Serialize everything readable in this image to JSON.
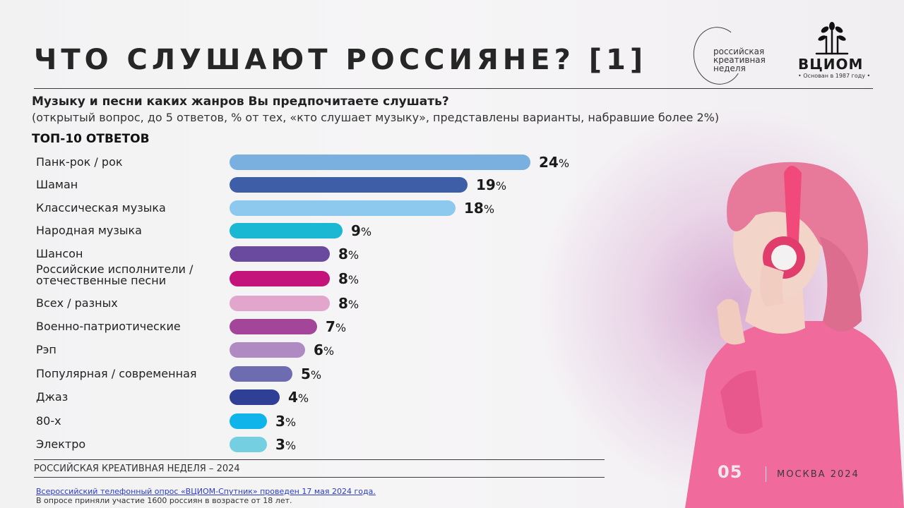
{
  "header": {
    "title": "ЧТО СЛУШАЮТ РОССИЯНЕ? [1]",
    "brand_lines": [
      "российская",
      "креативная",
      "неделя"
    ],
    "vciom_name": "ВЦИОМ",
    "vciom_tagline": "• Основан в 1987 году •"
  },
  "question": {
    "text": "Музыку и песни каких жанров Вы предпочитаете слушать?",
    "note": "(открытый вопрос, до 5 ответов, % от тех, «кто слушает музыку», представлены варианты, набравшие более 2%)",
    "section_label": "ТОП-10 ОТВЕТОВ"
  },
  "chart_data": {
    "type": "bar",
    "orientation": "horizontal",
    "categories": [
      "Панк-рок / рок",
      "Шаман",
      "Классическая музыка",
      "Народная музыка",
      "Шансон",
      "Российские исполнители / отечественные песни",
      "Всех / разных",
      "Военно-патриотические",
      "Рэп",
      "Популярная / современная",
      "Джаз",
      "80-х",
      "Электро"
    ],
    "values": [
      24,
      19,
      18,
      9,
      8,
      8,
      8,
      7,
      6,
      5,
      4,
      3,
      3
    ],
    "value_suffix": "%",
    "colors": [
      "#7ab0e0",
      "#3f5ea8",
      "#8dc9ee",
      "#1ab8d3",
      "#6a4a9e",
      "#c4137a",
      "#e2a5cc",
      "#a3469a",
      "#b08ac2",
      "#6d6cb0",
      "#2f3f95",
      "#0fb5ea",
      "#74cfe1"
    ],
    "xlim": [
      0,
      24
    ]
  },
  "footer": {
    "brand": "РОССИЙСКАЯ КРЕАТИВНАЯ НЕДЕЛЯ – 2024",
    "page_number": "05",
    "city_year": "МОСКВА 2024",
    "source_link": "Всероссийский телефонный опрос «ВЦИОМ-Спутник» проведен 17 мая 2024 года.",
    "source_note": "В опросе приняли участие 1600 россиян в возрасте от 18 лет."
  }
}
